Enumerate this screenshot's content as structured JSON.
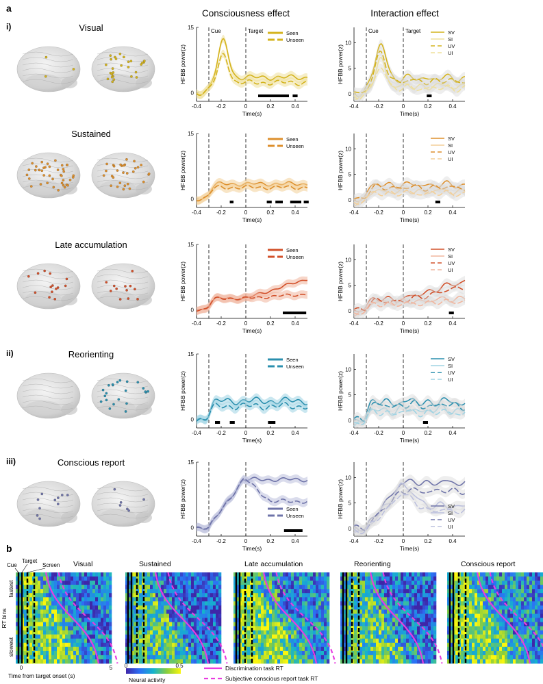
{
  "figure": {
    "panel_a": "a",
    "panel_b": "b",
    "col_titles": [
      "Consciousness effect",
      "Interaction effect"
    ],
    "rows": [
      {
        "roman": "i)",
        "name": "Visual",
        "color": "#d4b31c",
        "light": "#efe09a",
        "cons_bars": [
          [
            0.1,
            0.35
          ],
          [
            0.38,
            0.42
          ]
        ],
        "int_bars": [
          [
            0.19,
            0.23
          ]
        ]
      },
      {
        "roman": "",
        "name": "Sustained",
        "color": "#dd8f2c",
        "light": "#f3cf98",
        "cons_bars": [
          [
            -0.13,
            -0.1
          ],
          [
            0.17,
            0.21
          ],
          [
            0.24,
            0.3
          ],
          [
            0.36,
            0.45
          ],
          [
            0.47,
            0.51
          ]
        ],
        "int_bars": [
          [
            0.26,
            0.3
          ]
        ]
      },
      {
        "roman": "",
        "name": "Late accumulation",
        "color": "#d2502a",
        "light": "#f1b59d",
        "cons_bars": [
          [
            0.3,
            0.49
          ]
        ],
        "int_bars": [
          [
            0.37,
            0.41
          ]
        ]
      },
      {
        "roman": "ii)",
        "name": "Reorienting",
        "color": "#2a8fae",
        "light": "#9fd4e4",
        "cons_bars": [
          [
            -0.25,
            -0.21
          ],
          [
            -0.13,
            -0.09
          ],
          [
            0.18,
            0.24
          ]
        ],
        "int_bars": [
          [
            0.16,
            0.2
          ]
        ]
      },
      {
        "roman": "iii)",
        "name": "Conscious report",
        "color": "#6e73a8",
        "light": "#bcc0dd",
        "cons_bars": [
          [
            0.31,
            0.46
          ]
        ],
        "int_bars": []
      }
    ],
    "axis": {
      "ylabel": "HFBB power(z)",
      "xlabel": "Time(s)",
      "cons_ymax": "15",
      "int_yticks": [
        "0",
        "5",
        "10"
      ],
      "cons_yticks": [
        "0",
        "15"
      ],
      "xticks": [
        "-0.4",
        "-0.2",
        "0",
        "0.2",
        "0.4"
      ],
      "cue_label": "Cue",
      "target_label": "Target"
    },
    "legend_cons": [
      "Seen",
      "Unseen"
    ],
    "legend_int": [
      "SV",
      "SI",
      "UV",
      "UI"
    ],
    "panel_b_data": {
      "heatmap_titles": [
        "Visual",
        "Sustained",
        "Late accumulation",
        "Reorienting",
        "Conscious report"
      ],
      "event_labels": [
        "Cue",
        "Target",
        "Screen"
      ],
      "ylabel": "RT bins",
      "fastest": "fastest",
      "slowest": "slowest",
      "xlabel": "Time from target onset (s)",
      "xticks": [
        "0",
        "5"
      ],
      "colorbar_label": "Neural activity",
      "colorbar_ticks": [
        "0",
        "0.5"
      ],
      "legend": [
        "Discrimination task RT",
        "Subjective conscious report task RT"
      ],
      "rt_color": "#e83ce0"
    }
  }
}
